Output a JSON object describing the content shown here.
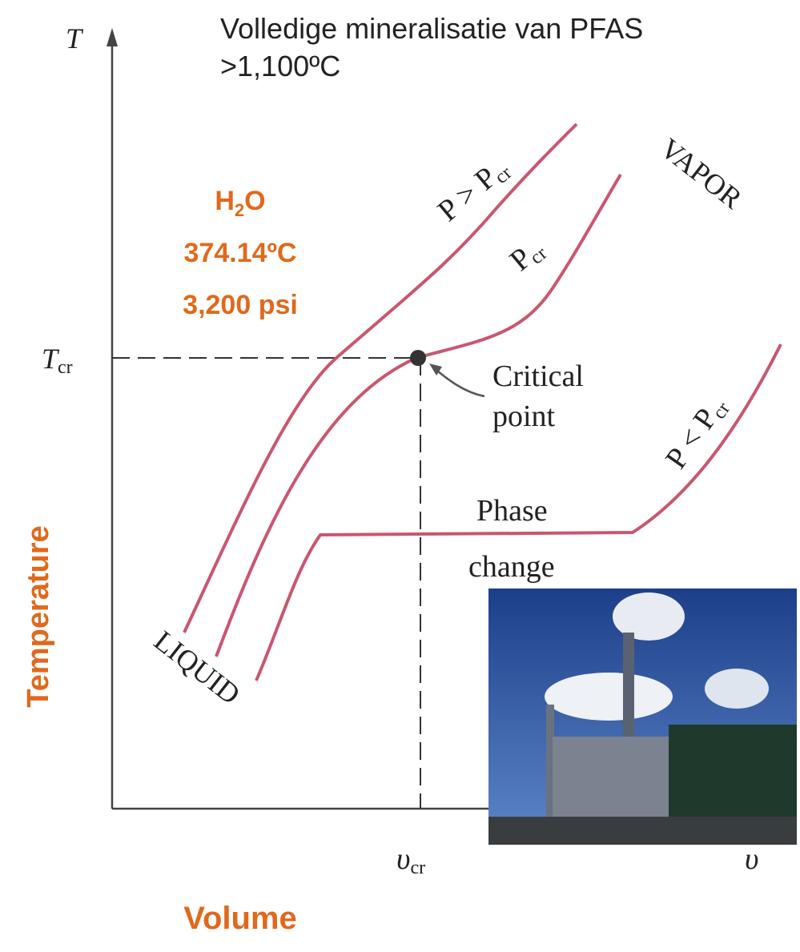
{
  "header": {
    "title": "Volledige mineralisatie van PFAS",
    "subtitle": ">1,100ºC"
  },
  "axes": {
    "y": {
      "symbol": "T",
      "critical": {
        "main": "T",
        "sub": "cr"
      },
      "name": "Temperature"
    },
    "x": {
      "symbol": "υ",
      "critical": {
        "main": "υ",
        "sub": "cr"
      },
      "name": "Volume"
    }
  },
  "annotation": {
    "compound": {
      "main": "H",
      "sub": "2",
      "tail": "O"
    },
    "temperature": "374.14ºC",
    "pressure": "3,200 psi"
  },
  "curves": [
    {
      "label": {
        "main": "P > P",
        "sub": "cr"
      }
    },
    {
      "label": {
        "main": "P",
        "sub": "cr"
      }
    },
    {
      "label": {
        "main": "P < P",
        "sub": "cr"
      }
    }
  ],
  "regions": {
    "vapor": "VAPOR",
    "liquid": "LIQUID"
  },
  "critical_point": [
    "Critical",
    "point"
  ],
  "phase_change": [
    "Phase",
    "change"
  ]
}
